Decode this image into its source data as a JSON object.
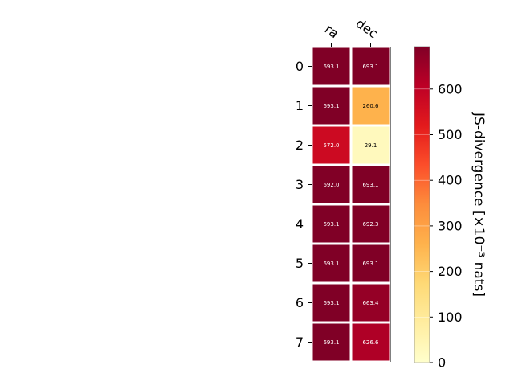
{
  "chart_data": {
    "type": "heatmap",
    "columns": [
      "ra",
      "dec"
    ],
    "rows": [
      "0",
      "1",
      "2",
      "3",
      "4",
      "5",
      "6",
      "7"
    ],
    "values": [
      [
        693.1,
        693.1
      ],
      [
        693.1,
        260.6
      ],
      [
        572.0,
        29.1
      ],
      [
        692.0,
        693.1
      ],
      [
        693.1,
        692.3
      ],
      [
        693.1,
        693.1
      ],
      [
        693.1,
        663.4
      ],
      [
        693.1,
        626.6
      ]
    ],
    "cell_labels": [
      [
        "693.1",
        "693.1"
      ],
      [
        "693.1",
        "260.6"
      ],
      [
        "572.0",
        "29.1"
      ],
      [
        "692.0",
        "693.1"
      ],
      [
        "693.1",
        "692.3"
      ],
      [
        "693.1",
        "693.1"
      ],
      [
        "693.1",
        "663.4"
      ],
      [
        "693.1",
        "626.6"
      ]
    ],
    "colormap": "YlOrRd",
    "value_range": [
      0,
      693.1
    ],
    "colorbar": {
      "label": "JS-divergence [×10⁻³ nats]",
      "ticks": [
        "0",
        "100",
        "200",
        "300",
        "400",
        "500",
        "600"
      ]
    },
    "colors": {
      "stops": [
        "#ffffcc",
        "#ffeda0",
        "#fed976",
        "#feb24c",
        "#fd8d3c",
        "#fc4e2a",
        "#e31a1c",
        "#bd0026",
        "#800026"
      ]
    }
  }
}
